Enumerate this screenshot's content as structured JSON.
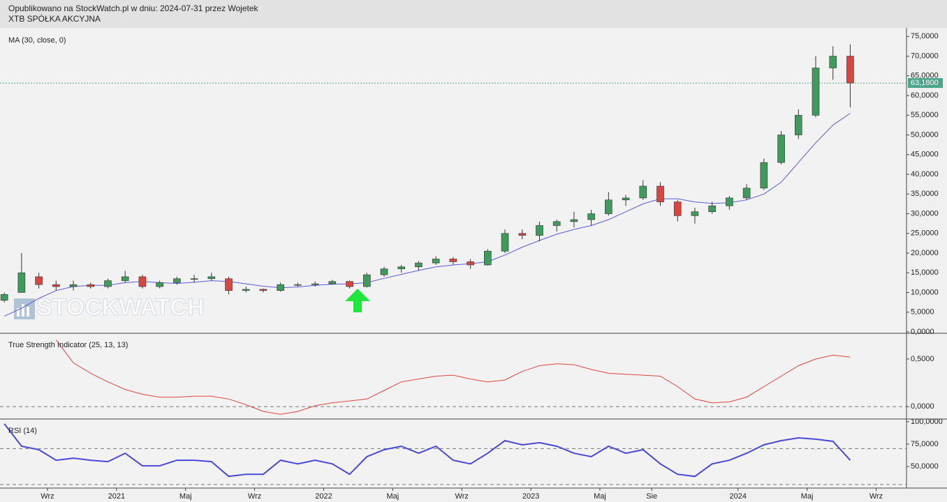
{
  "header": {
    "published": "Opublikowano na StockWatch.pl w dniu: 2024-07-31 przez Wojetek",
    "instrument": "XTB SPÓŁKA AKCYJNA",
    "watermark": "STOCKWATCH"
  },
  "chart_data": [
    {
      "type": "candlestick",
      "categories": [
        null,
        null,
        null,
        "Wrz",
        null,
        null,
        null,
        "2021",
        null,
        null,
        null,
        "Maj",
        null,
        null,
        null,
        "Wrz",
        null,
        null,
        null,
        "2022",
        null,
        null,
        null,
        "Maj",
        null,
        null,
        null,
        "Wrz",
        null,
        null,
        null,
        "2023",
        null,
        null,
        null,
        "Maj",
        null,
        null,
        "Sie",
        null,
        null,
        null,
        null,
        "2024",
        null,
        null,
        null,
        "Maj",
        null,
        null,
        null,
        "Wrz"
      ],
      "open": [
        8,
        10,
        14,
        12,
        11.5,
        12,
        11.5,
        13,
        14,
        11.5,
        12.5,
        13.5,
        13.5,
        13.5,
        10.5,
        10.8,
        10.5,
        12,
        12,
        12.2,
        12.8,
        11.5,
        14.5,
        16,
        16.5,
        17.5,
        18.5,
        17.8,
        17,
        20.5,
        25,
        24.5,
        27,
        28,
        28.5,
        30,
        33.5,
        34,
        37,
        33,
        29.5,
        30.5,
        32,
        34,
        36.5,
        43,
        50,
        55,
        67,
        70,
        null,
        null
      ],
      "high": [
        10,
        20,
        15,
        13,
        13,
        12.5,
        13.5,
        15.5,
        14.5,
        13,
        14,
        14.5,
        15,
        14,
        11.5,
        11,
        12.5,
        12.5,
        12.8,
        13.2,
        13,
        15,
        16.5,
        17,
        18,
        19.2,
        19,
        18.5,
        21,
        26,
        26,
        28,
        28.5,
        30.5,
        31,
        35.5,
        34.8,
        38.5,
        38,
        33.5,
        31.5,
        33,
        34.5,
        37.5,
        44,
        51,
        56.5,
        70,
        72.5,
        73,
        null,
        null
      ],
      "low": [
        7.5,
        10,
        11,
        10.5,
        10.5,
        11,
        11,
        12.5,
        11,
        11,
        12,
        12.5,
        13,
        9.5,
        10,
        10,
        10.2,
        11.5,
        11.5,
        12,
        11,
        11.3,
        14,
        15,
        15.5,
        17,
        17,
        16,
        16.8,
        20,
        23.5,
        23,
        25.5,
        26.5,
        27,
        29.5,
        32,
        33.5,
        32,
        28,
        27.5,
        30,
        31,
        33.5,
        36,
        42.5,
        49,
        54.5,
        64,
        57,
        null,
        null
      ],
      "close": [
        9.5,
        15,
        12,
        11.5,
        12,
        11.5,
        13,
        14,
        11.5,
        12.5,
        13.5,
        13.5,
        14,
        10.5,
        10.8,
        10.5,
        12,
        12,
        12.2,
        12.8,
        11.5,
        14.5,
        16,
        16.5,
        17.5,
        18.5,
        17.8,
        17,
        20.5,
        25,
        24.5,
        27,
        28,
        28.5,
        30,
        33.5,
        34,
        37,
        33,
        29.5,
        30.5,
        32,
        34,
        36.5,
        43,
        50,
        55,
        67,
        70,
        63.18,
        null,
        null
      ],
      "up_color": "#3f9a5b",
      "down_color": "#d9463f",
      "series": [
        {
          "name": "MA (30, close, 0)",
          "color": "#5a5ad8",
          "values": [
            4,
            6,
            8.5,
            10.5,
            11.5,
            11.8,
            11.8,
            12.5,
            12.8,
            12.5,
            12.3,
            12.6,
            13,
            12.8,
            12.2,
            11.6,
            11.2,
            11.4,
            11.8,
            12.1,
            12.2,
            12.5,
            13.6,
            14.6,
            15.6,
            16.5,
            17,
            17.3,
            17.8,
            19.5,
            21.5,
            23.2,
            24.8,
            26,
            27,
            28.5,
            30.5,
            32.5,
            33.8,
            33.8,
            33,
            32.6,
            32.8,
            33.5,
            35,
            38,
            43,
            48,
            52.5,
            55.5,
            null,
            null
          ]
        }
      ],
      "last_price": {
        "value": 63.18,
        "label": "63,1800"
      },
      "last_price_color": "#4aa58a",
      "ylim": [
        0,
        77
      ],
      "yticks": [
        {
          "value": 0,
          "label": "0,0000"
        },
        {
          "value": 5,
          "label": "5,0000"
        },
        {
          "value": 10,
          "label": "10,0000"
        },
        {
          "value": 15,
          "label": "15,0000"
        },
        {
          "value": 20,
          "label": "20,0000"
        },
        {
          "value": 25,
          "label": "25,0000"
        },
        {
          "value": 30,
          "label": "30,0000"
        },
        {
          "value": 35,
          "label": "35,0000"
        },
        {
          "value": 40,
          "label": "40,0000"
        },
        {
          "value": 45,
          "label": "45,0000"
        },
        {
          "value": 50,
          "label": "50,0000"
        },
        {
          "value": 55,
          "label": "55,0000"
        },
        {
          "value": 60,
          "label": "60,0000"
        },
        {
          "value": 65,
          "label": "65,0000"
        },
        {
          "value": 70,
          "label": "70,0000"
        },
        {
          "value": 75,
          "label": "75,0000"
        }
      ]
    },
    {
      "type": "line",
      "title": "True Strength Indicator (25, 13, 13)",
      "color": "#e0463c",
      "values": [
        null,
        null,
        null,
        0.7,
        0.46,
        0.35,
        0.26,
        0.18,
        0.13,
        0.1,
        0.1,
        0.11,
        0.11,
        0.08,
        0.02,
        -0.05,
        -0.08,
        -0.05,
        0.01,
        0.04,
        0.06,
        0.08,
        0.17,
        0.26,
        0.29,
        0.32,
        0.33,
        0.29,
        0.26,
        0.28,
        0.37,
        0.43,
        0.45,
        0.44,
        0.39,
        0.35,
        0.34,
        0.33,
        0.32,
        0.21,
        0.08,
        0.04,
        0.05,
        0.1,
        0.21,
        0.32,
        0.43,
        0.5,
        0.54,
        0.52,
        null,
        null
      ],
      "guides": [
        0
      ],
      "ylim": [
        -0.13,
        0.77
      ],
      "yticks": [
        {
          "value": 0.5,
          "label": "0,5000"
        },
        {
          "value": 0,
          "label": "0,0000"
        }
      ]
    },
    {
      "type": "line",
      "title": "RSI (14)",
      "color": "#4848d8",
      "values": [
        97.7,
        72.7,
        68.8,
        57,
        59.4,
        57,
        55.5,
        64.8,
        50.8,
        50.8,
        57,
        57,
        55.5,
        39,
        41.4,
        41.4,
        57,
        53,
        57,
        53,
        41.4,
        61,
        68.8,
        72.7,
        64.8,
        72.7,
        57,
        53,
        64.8,
        78.9,
        74.2,
        76.6,
        72.7,
        64.8,
        61,
        72.7,
        64.8,
        68.8,
        53,
        41.4,
        39,
        53,
        57,
        64.8,
        74.2,
        78.9,
        82,
        80.5,
        78.1,
        57,
        null,
        null
      ],
      "guides": [
        70,
        30
      ],
      "ylim": [
        26,
        103
      ],
      "yticks": [
        {
          "value": 100,
          "label": "100,0000"
        },
        {
          "value": 75,
          "label": "75,0000"
        },
        {
          "value": 50,
          "label": "50,0000"
        }
      ]
    }
  ]
}
